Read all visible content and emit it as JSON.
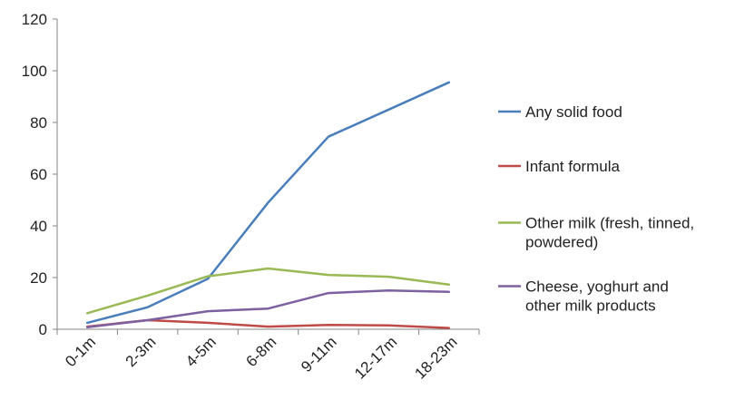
{
  "chart_data": {
    "type": "line",
    "title": "",
    "xlabel": "",
    "ylabel": "",
    "categories": [
      "0-1m",
      "2-3m",
      "4-5m",
      "6-8m",
      "9-11m",
      "12-17m",
      "18-23m"
    ],
    "ylim": [
      0,
      120
    ],
    "yticks": [
      0,
      20,
      40,
      60,
      80,
      100,
      120
    ],
    "grid": false,
    "legend_position": "right",
    "series": [
      {
        "name": "Any solid food",
        "legend_lines": [
          "Any solid food"
        ],
        "color": "#4a7ebb",
        "values": [
          2.5,
          8.5,
          19.5,
          49,
          74.5,
          85,
          95.5
        ]
      },
      {
        "name": "Infant formula",
        "legend_lines": [
          "Infant formula"
        ],
        "color": "#be4b48",
        "values": [
          1,
          3.5,
          2.5,
          1,
          1.7,
          1.5,
          0.5
        ]
      },
      {
        "name": "Other milk (fresh, tinned, powdered)",
        "legend_lines": [
          "Other milk (fresh, tinned,",
          "powdered)"
        ],
        "color": "#98b954",
        "values": [
          6.2,
          13,
          20.5,
          23.5,
          21,
          20.3,
          17.3
        ]
      },
      {
        "name": "Cheese, yoghurt and other milk products",
        "legend_lines": [
          "Cheese, yoghurt and",
          "other milk products"
        ],
        "color": "#7d60a0",
        "values": [
          0.8,
          3.5,
          7,
          8,
          14,
          15,
          14.5
        ]
      }
    ]
  }
}
